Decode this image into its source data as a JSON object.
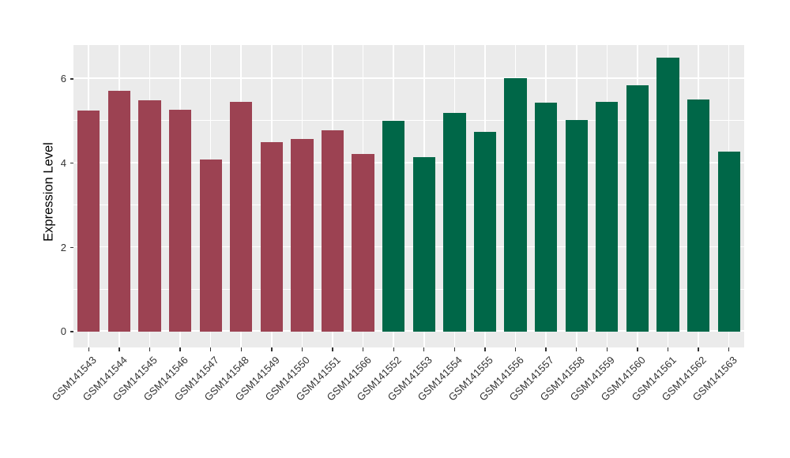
{
  "chart_data": {
    "type": "bar",
    "title": "",
    "xlabel": "",
    "ylabel": "Expression Level",
    "legend_position": "none",
    "grid": true,
    "ylim": [
      -0.375,
      6.806
    ],
    "yticks": [
      0,
      2,
      4,
      6
    ],
    "yticks_minor": [
      1,
      3,
      5
    ],
    "bars": [
      {
        "label": "GSM141543",
        "value": 5.25,
        "group": "group-1",
        "color": "#9C4252"
      },
      {
        "label": "GSM141544",
        "value": 5.72,
        "group": "group-1",
        "color": "#9C4252"
      },
      {
        "label": "GSM141545",
        "value": 5.5,
        "group": "group-1",
        "color": "#9C4252"
      },
      {
        "label": "GSM141546",
        "value": 5.26,
        "group": "group-1",
        "color": "#9C4252"
      },
      {
        "label": "GSM141547",
        "value": 4.08,
        "group": "group-1",
        "color": "#9C4252"
      },
      {
        "label": "GSM141548",
        "value": 5.45,
        "group": "group-1",
        "color": "#9C4252"
      },
      {
        "label": "GSM141549",
        "value": 4.5,
        "group": "group-1",
        "color": "#9C4252"
      },
      {
        "label": "GSM141550",
        "value": 4.58,
        "group": "group-1",
        "color": "#9C4252"
      },
      {
        "label": "GSM141551",
        "value": 4.78,
        "group": "group-1",
        "color": "#9C4252"
      },
      {
        "label": "GSM141566",
        "value": 4.22,
        "group": "group-1",
        "color": "#9C4252"
      },
      {
        "label": "GSM141552",
        "value": 5.01,
        "group": "group-2",
        "color": "#006748"
      },
      {
        "label": "GSM141553",
        "value": 4.15,
        "group": "group-2",
        "color": "#006748"
      },
      {
        "label": "GSM141554",
        "value": 5.2,
        "group": "group-2",
        "color": "#006748"
      },
      {
        "label": "GSM141555",
        "value": 4.75,
        "group": "group-2",
        "color": "#006748"
      },
      {
        "label": "GSM141556",
        "value": 6.02,
        "group": "group-2",
        "color": "#006748"
      },
      {
        "label": "GSM141557",
        "value": 5.44,
        "group": "group-2",
        "color": "#006748"
      },
      {
        "label": "GSM141558",
        "value": 5.02,
        "group": "group-2",
        "color": "#006748"
      },
      {
        "label": "GSM141559",
        "value": 5.45,
        "group": "group-2",
        "color": "#006748"
      },
      {
        "label": "GSM141560",
        "value": 5.85,
        "group": "group-2",
        "color": "#006748"
      },
      {
        "label": "GSM141561",
        "value": 6.5,
        "group": "group-2",
        "color": "#006748"
      },
      {
        "label": "GSM141562",
        "value": 5.52,
        "group": "group-2",
        "color": "#006748"
      },
      {
        "label": "GSM141563",
        "value": 4.27,
        "group": "group-2",
        "color": "#006748"
      }
    ],
    "colors": {
      "group1_fill": "#9C4252",
      "group2_fill": "#006748",
      "panel_background": "#EBEBEB",
      "gridline": "#FFFFFF",
      "tick_mark": "#333333",
      "axis_text": "#333333",
      "axis_title": "#000000",
      "figure_background": "#FFFFFF"
    }
  }
}
